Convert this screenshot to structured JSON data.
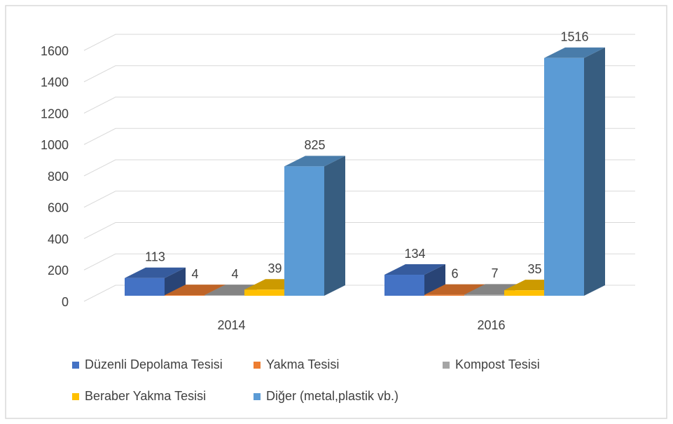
{
  "chart_data": {
    "type": "bar3d",
    "categories": [
      "2014",
      "2016"
    ],
    "series": [
      {
        "name": "Düzenli Depolama Tesisi",
        "color": "#4472c4",
        "values": [
          113,
          134
        ]
      },
      {
        "name": "Yakma Tesisi",
        "color": "#ed7d31",
        "values": [
          4,
          6
        ]
      },
      {
        "name": "Kompost Tesisi",
        "color": "#a5a5a5",
        "values": [
          4,
          7
        ]
      },
      {
        "name": "Beraber Yakma Tesisi",
        "color": "#ffc000",
        "values": [
          39,
          35
        ]
      },
      {
        "name": "Diğer (metal,plastik vb.)",
        "color": "#5b9bd5",
        "values": [
          825,
          1516
        ]
      }
    ],
    "ylim": [
      0,
      1600
    ],
    "yticks": [
      0,
      200,
      400,
      600,
      800,
      1000,
      1200,
      1400,
      1600
    ],
    "grid": true,
    "legend": "bottom"
  }
}
